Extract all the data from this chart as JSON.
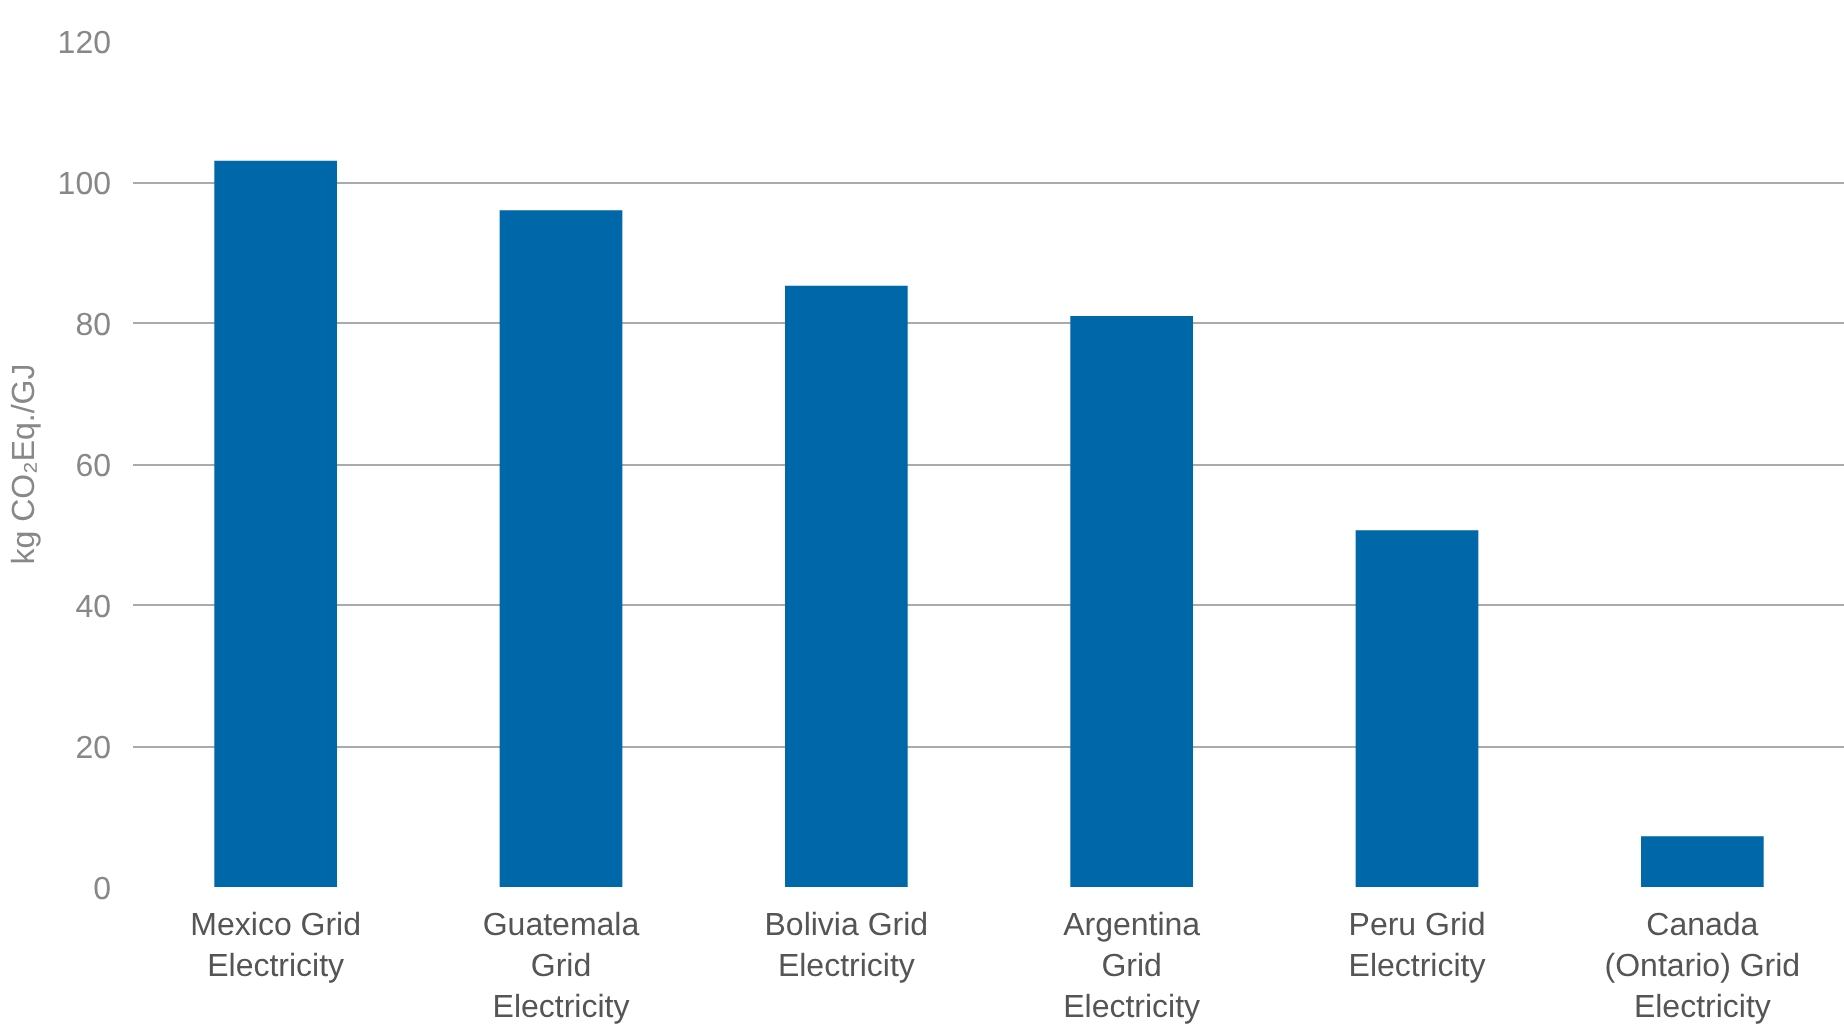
{
  "chart_data": {
    "type": "bar",
    "ylabel": "kg CO₂Eq./GJ",
    "categories": [
      "Mexico Grid\nElectricity",
      "Guatemala\nGrid\nElectricity",
      "Bolivia Grid\nElectricity",
      "Argentina\nGrid\nElectricity",
      "Peru Grid\nElectricity",
      "Canada\n(Ontario) Grid\nElectricity"
    ],
    "values": [
      103,
      96,
      85.3,
      81,
      50.6,
      7.2
    ],
    "color": "#0067a8",
    "ylim": [
      0,
      120
    ],
    "yticks": [
      0,
      20,
      40,
      60,
      80,
      100,
      120
    ],
    "grid": "y"
  }
}
